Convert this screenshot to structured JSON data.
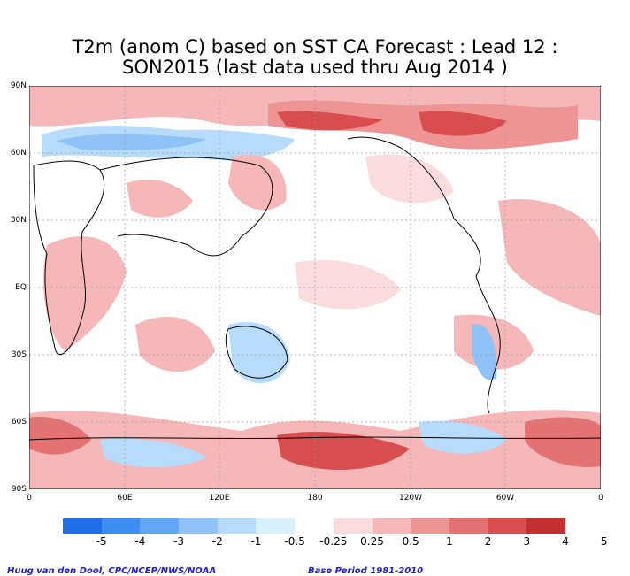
{
  "title": {
    "line1": "T2m (anom C) based on SST CA Forecast : Lead 12 :",
    "line2": "SON2015 (last data used thru Aug 2014 )"
  },
  "axes": {
    "y_labels": [
      "90N",
      "60N",
      "30N",
      "EQ",
      "30S",
      "60S",
      "90S"
    ],
    "x_labels": [
      "0",
      "60E",
      "120E",
      "180",
      "120W",
      "60W",
      "0"
    ]
  },
  "legend": {
    "colors": [
      "#1f6fe6",
      "#3d8ef0",
      "#62a7f5",
      "#8fc3f8",
      "#b7dcfb",
      "#d9f0fd",
      "#ffffff",
      "#fbdcdc",
      "#f5b7b7",
      "#ee9494",
      "#e57272",
      "#d84e4e",
      "#c23030"
    ],
    "labels": [
      "-5",
      "-4",
      "-3",
      "-2",
      "-1",
      "-0.5",
      "-0.25",
      "0.25",
      "0.5",
      "1",
      "2",
      "3",
      "4",
      "5"
    ]
  },
  "credits": {
    "left": "Huug van den Dool, CPC/NCEP/NWS/NOAA",
    "right": "Base Period 1981-2010"
  },
  "colors": {
    "ocean": "#ffffff",
    "coast": "#000000",
    "grid": "#9a9a9a"
  }
}
